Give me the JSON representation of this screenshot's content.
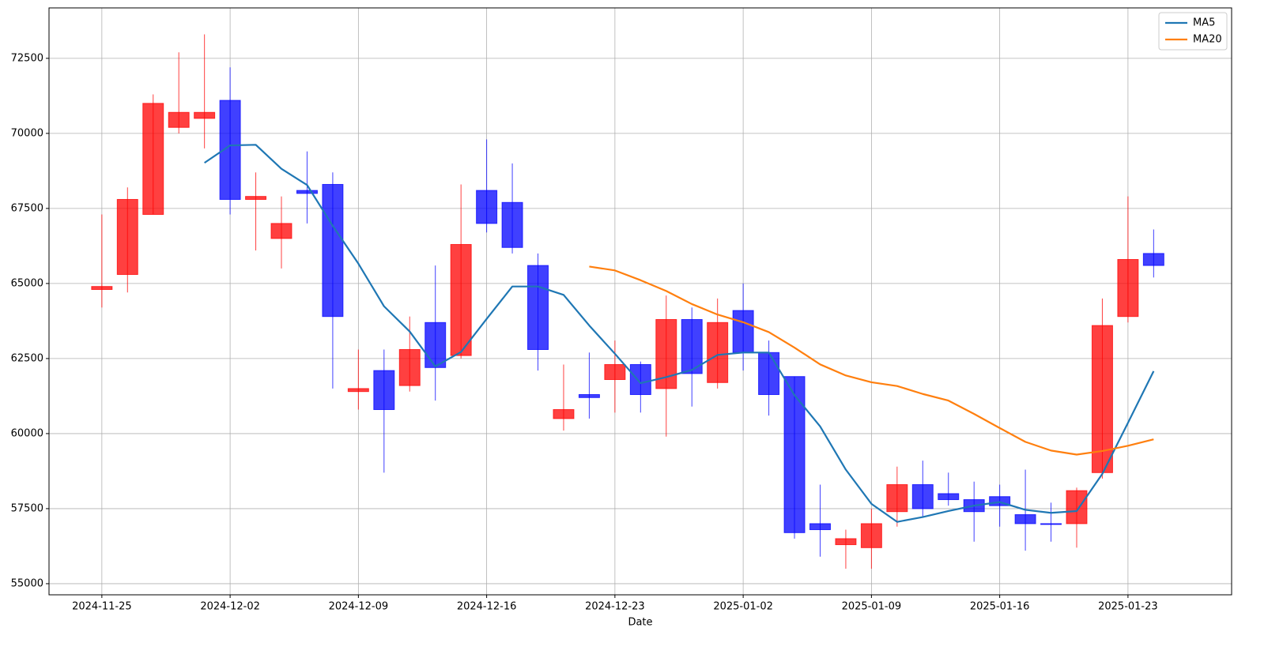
{
  "chart_data": {
    "type": "candlestick",
    "categories": [
      "2024-11-25",
      null,
      null,
      null,
      null,
      "2024-12-02",
      null,
      null,
      null,
      null,
      "2024-12-09",
      null,
      null,
      null,
      null,
      "2024-12-16",
      null,
      null,
      null,
      null,
      "2024-12-23",
      null,
      null,
      null,
      null,
      "2025-01-02",
      null,
      null,
      null,
      null,
      "2025-01-09",
      null,
      null,
      null,
      null,
      "2025-01-16",
      null,
      null,
      null,
      null,
      "2025-01-23",
      null
    ],
    "open": [
      64800,
      65300,
      67300,
      70200,
      70500,
      71100,
      67800,
      66500,
      68100,
      68300,
      61400,
      62100,
      61600,
      63700,
      62600,
      68100,
      67700,
      65600,
      60500,
      61300,
      61800,
      62300,
      61500,
      63800,
      61700,
      64100,
      62700,
      61900,
      57000,
      56300,
      56200,
      57400,
      58300,
      58000,
      57800,
      57900,
      57300,
      57000,
      57000,
      58700,
      63900,
      66000
    ],
    "high": [
      67300,
      68200,
      71300,
      72700,
      73300,
      72200,
      68700,
      67900,
      69400,
      68700,
      62800,
      62800,
      63900,
      65600,
      68300,
      69800,
      69000,
      66000,
      62300,
      62700,
      63100,
      62400,
      64600,
      64200,
      64500,
      65000,
      63100,
      61900,
      58300,
      56800,
      57500,
      58900,
      59100,
      58700,
      58400,
      58300,
      58800,
      57700,
      58200,
      64500,
      67900,
      66800
    ],
    "low": [
      64200,
      64700,
      67300,
      70000,
      69500,
      67300,
      66100,
      65500,
      67000,
      61500,
      60800,
      58700,
      61400,
      61100,
      62500,
      66700,
      66000,
      62100,
      60100,
      60500,
      60700,
      60700,
      59900,
      60900,
      61500,
      62100,
      60600,
      56500,
      55900,
      55500,
      55500,
      56900,
      57200,
      57600,
      56400,
      56900,
      56100,
      56400,
      56200,
      58500,
      63700,
      65200
    ],
    "close": [
      64900,
      67800,
      71000,
      70700,
      70700,
      67800,
      67900,
      67000,
      68000,
      63900,
      61500,
      60800,
      62800,
      62200,
      66300,
      67000,
      66200,
      62800,
      60800,
      61200,
      62300,
      61300,
      63800,
      62000,
      63700,
      62700,
      61300,
      56700,
      56800,
      56500,
      57000,
      58300,
      57500,
      57800,
      57400,
      57600,
      57000,
      57000,
      58100,
      63600,
      65800,
      65600
    ],
    "up_color": "#ff0000",
    "down_color": "#0000ff",
    "series": [
      {
        "name": "MA5",
        "color": "#1f77b4",
        "values": [
          null,
          null,
          null,
          null,
          69020,
          69600,
          69620,
          68820,
          68280,
          66920,
          65660,
          64240,
          63400,
          62240,
          62720,
          63820,
          64900,
          64900,
          64620,
          63600,
          62660,
          61680,
          61880,
          62120,
          62620,
          62700,
          62700,
          61280,
          60240,
          58800,
          57660,
          57060,
          57220,
          57420,
          57600,
          57720,
          57460,
          57360,
          57420,
          58660,
          60360,
          62080
        ]
      },
      {
        "name": "MA20",
        "color": "#ff7f0e",
        "values": [
          null,
          null,
          null,
          null,
          null,
          null,
          null,
          null,
          null,
          null,
          null,
          null,
          null,
          null,
          null,
          null,
          null,
          null,
          null,
          65565,
          65435,
          65110,
          64750,
          64315,
          63965,
          63710,
          63380,
          62865,
          62305,
          61935,
          61710,
          61585,
          61320,
          61100,
          60655,
          60185,
          59725,
          59435,
          59300,
          59420,
          59595,
          59810
        ]
      }
    ],
    "xlabel": "Date",
    "ylim": [
      54630,
      74180
    ],
    "yticks": [
      55000,
      57500,
      60000,
      62500,
      65000,
      67500,
      70000,
      72500
    ],
    "grid": true,
    "legend": "upper right"
  }
}
